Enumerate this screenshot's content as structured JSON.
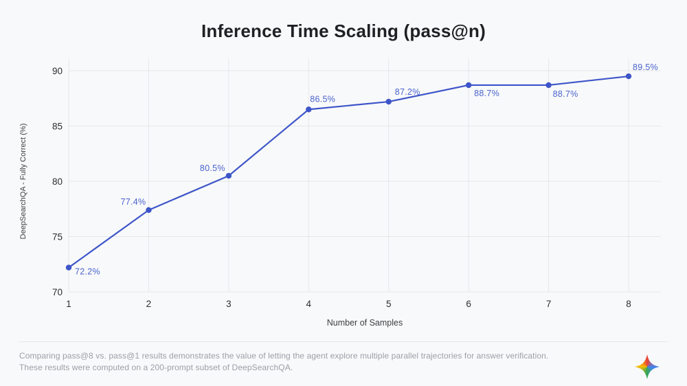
{
  "page": {
    "title": "Inference Time Scaling (pass@n)",
    "background": "#F8F9FA"
  },
  "chart_data": {
    "type": "line",
    "title": "Inference Time Scaling (pass@n)",
    "x": [
      1,
      2,
      3,
      4,
      5,
      6,
      7,
      8
    ],
    "values": [
      72.2,
      77.4,
      80.5,
      86.5,
      87.2,
      88.7,
      88.7,
      89.5
    ],
    "point_labels": [
      "72.2%",
      "77.4%",
      "80.5%",
      "86.5%",
      "87.2%",
      "88.7%",
      "88.7%",
      "89.5%"
    ],
    "xlabel": "Number of Samples",
    "ylabel": "DeepSearchQA - Fully Correct (%)",
    "xticks": [
      1,
      2,
      3,
      4,
      5,
      6,
      7,
      8
    ],
    "yticks": [
      70,
      75,
      80,
      85,
      90
    ],
    "ylim": [
      70,
      90
    ],
    "xlim": [
      1,
      8
    ],
    "grid": true,
    "legend_position": "none",
    "line_color": "#3D55C9",
    "marker_color": "#3D55C9",
    "point_label_color": "#4A63CE",
    "tick_label_color": "#2b2d30",
    "axis_title_color": "#3c4043",
    "gridline_color": "#E4E7EA"
  },
  "footer": {
    "line1": "Comparing pass@8 vs. pass@1 results demonstrates the value of letting the agent explore multiple parallel trajectories for answer verification.",
    "line2": "These results were computed on a 200-prompt subset of DeepSearchQA.",
    "logo": "gemini-sparkle-logo",
    "logo_colors": {
      "top": "#EA4335",
      "right": "#4285F4",
      "bottom": "#34A853",
      "left": "#FBBC04"
    }
  }
}
